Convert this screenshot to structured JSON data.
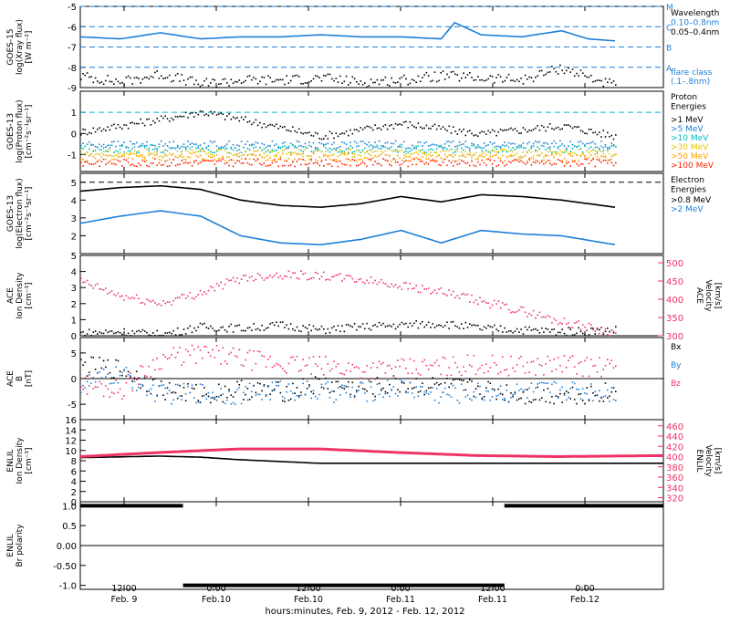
{
  "chart_data": {
    "type": "multi-panel time series",
    "x_axis": {
      "tick_labels": [
        {
          "time": "12:00",
          "date": "Feb. 9"
        },
        {
          "time": "0:00",
          "date": "Feb.10"
        },
        {
          "time": "12:00",
          "date": "Feb.10"
        },
        {
          "time": "0:00",
          "date": "Feb.11"
        },
        {
          "time": "12:00",
          "date": "Feb.11"
        },
        {
          "time": "0:00",
          "date": "Feb.12"
        }
      ],
      "label": "hours:minutes, Feb. 9, 2012 - Feb. 12, 2012",
      "range": [
        "2012-02-09 03:00",
        "2012-02-12 11:00"
      ]
    },
    "panels": [
      {
        "id": "goes15",
        "ylabel": [
          "GOES-15",
          "log(Xray flux)",
          "[W m⁻²]"
        ],
        "ylim": [
          -9,
          -5
        ],
        "yticks": [
          "-5",
          "-6",
          "-7",
          "-8",
          "-9"
        ],
        "flare_class_levels": [
          {
            "label": "M",
            "value": -5
          },
          {
            "label": "C",
            "value": -6
          },
          {
            "label": "B",
            "value": -7
          },
          {
            "label": "A",
            "value": -8
          }
        ],
        "legend": [
          {
            "text": "Wavelength",
            "color": "#000000"
          },
          {
            "text": "0.10–0.8nm",
            "color": "#1e7fd8"
          },
          {
            "text": "0.05–0.4nm",
            "color": "#000000"
          },
          {
            "text": "flare class",
            "color": "#1e7fd8"
          },
          {
            "text": "(.1–.8nm)",
            "color": "#1e7fd8"
          }
        ],
        "series": [
          {
            "name": "0.10–0.8nm",
            "color": "#1e7fd8",
            "hours": [
              0,
              6,
              12,
              18,
              24,
              30,
              36,
              42,
              48,
              54,
              56,
              60,
              66,
              72,
              76,
              80
            ],
            "values": [
              -6.5,
              -6.6,
              -6.3,
              -6.6,
              -6.5,
              -6.5,
              -6.4,
              -6.5,
              -6.5,
              -6.6,
              -5.8,
              -6.4,
              -6.5,
              -6.2,
              -6.6,
              -6.7
            ]
          },
          {
            "name": "0.05–0.4nm",
            "color": "#000000",
            "hours": [
              0,
              6,
              12,
              18,
              24,
              30,
              36,
              42,
              48,
              54,
              60,
              66,
              72,
              80
            ],
            "values": [
              -8.4,
              -8.7,
              -8.3,
              -8.8,
              -8.6,
              -8.6,
              -8.5,
              -8.7,
              -8.6,
              -8.4,
              -8.5,
              -8.6,
              -8.0,
              -8.9
            ]
          }
        ]
      },
      {
        "id": "goes13p",
        "ylabel": [
          "GOES-13",
          "log(Proton flux)",
          "[cm⁻²s⁻¹sr⁻¹]"
        ],
        "ylim": [
          -1.8,
          2.0
        ],
        "yticks": [
          "1",
          "0",
          "-1"
        ],
        "legend": [
          {
            "text": "Proton",
            "color": "#000000"
          },
          {
            "text": "Energies",
            "color": "#000000"
          },
          {
            "text": ">1 MeV",
            "color": "#000000"
          },
          {
            "text": ">5 MeV",
            "color": "#1e7fd8"
          },
          {
            "text": ">10 MeV",
            "color": "#00b8b8"
          },
          {
            "text": ">30 MeV",
            "color": "#e0c800"
          },
          {
            "text": ">50 MeV",
            "color": "#ff9c00"
          },
          {
            "text": ">100 MeV",
            "color": "#ff2200"
          }
        ],
        "series": [
          {
            "name": ">1 MeV",
            "color": "#000000",
            "hours": [
              0,
              12,
              18,
              24,
              36,
              48,
              60,
              72,
              80
            ],
            "values": [
              0.1,
              0.7,
              1.05,
              0.7,
              -0.1,
              0.5,
              0.0,
              0.4,
              -0.1
            ]
          },
          {
            "name": ">5 MeV",
            "color": "#1e7fd8",
            "hours": [
              0,
              80
            ],
            "values": [
              -0.5,
              -0.5
            ]
          },
          {
            "name": ">10 MeV",
            "color": "#00b8b8",
            "hours": [
              0,
              80
            ],
            "values": [
              -0.7,
              -0.7
            ]
          },
          {
            "name": ">30 MeV",
            "color": "#e0c800",
            "hours": [
              0,
              80
            ],
            "values": [
              -0.9,
              -0.9
            ]
          },
          {
            "name": ">50 MeV",
            "color": "#ff9c00",
            "hours": [
              0,
              80
            ],
            "values": [
              -1.1,
              -1.1
            ]
          },
          {
            "name": ">100 MeV",
            "color": "#ff2200",
            "hours": [
              0,
              80
            ],
            "values": [
              -1.35,
              -1.35
            ]
          }
        ]
      },
      {
        "id": "goes13e",
        "ylabel": [
          "GOES-13",
          "log(Electron flux)",
          "[cm⁻²s⁻¹sr⁻¹]"
        ],
        "ylim": [
          1.0,
          5.5
        ],
        "yticks": [
          "5",
          "4",
          "3",
          "2"
        ],
        "legend": [
          {
            "text": "Electron",
            "color": "#000000"
          },
          {
            "text": "Energies",
            "color": "#000000"
          },
          {
            "text": ">0.8 MeV",
            "color": "#000000"
          },
          {
            "text": ">2 MeV",
            "color": "#1e7fd8"
          }
        ],
        "series": [
          {
            "name": ">0.8 MeV",
            "color": "#000000",
            "hours": [
              0,
              6,
              12,
              18,
              24,
              30,
              36,
              42,
              48,
              54,
              60,
              66,
              72,
              80
            ],
            "values": [
              4.5,
              4.7,
              4.8,
              4.6,
              4.0,
              3.7,
              3.6,
              3.8,
              4.2,
              3.9,
              4.3,
              4.2,
              4.0,
              3.6
            ]
          },
          {
            "name": ">2 MeV",
            "color": "#1e7fd8",
            "hours": [
              0,
              6,
              12,
              18,
              24,
              30,
              36,
              42,
              48,
              54,
              60,
              66,
              72,
              80
            ],
            "values": [
              2.7,
              3.1,
              3.4,
              3.1,
              2.0,
              1.6,
              1.5,
              1.8,
              2.3,
              1.6,
              2.3,
              2.1,
              2.0,
              1.5
            ]
          }
        ]
      },
      {
        "id": "ace_density",
        "ylabel": [
          "ACE",
          "Ion Density",
          "[cm⁻³]"
        ],
        "ylim": [
          0,
          5
        ],
        "yticks": [
          "5",
          "4",
          "3",
          "2",
          "1",
          "0"
        ],
        "right_label": [
          "ACE",
          "Velocity",
          "[km/s]"
        ],
        "right_ylim": [
          300,
          520
        ],
        "right_yticks": [
          "500",
          "450",
          "400",
          "350",
          "300"
        ],
        "series": [
          {
            "name": "Ion Density",
            "color": "#000000",
            "hours": [
              0,
              6,
              12,
              18,
              24,
              30,
              36,
              42,
              48,
              54,
              60,
              66,
              72,
              80
            ],
            "values": [
              0.2,
              0.3,
              0.1,
              0.6,
              0.5,
              0.7,
              0.4,
              0.6,
              0.7,
              0.8,
              0.5,
              0.4,
              0.3,
              0.4
            ]
          },
          {
            "name": "Velocity",
            "color": "#ee3366",
            "hours": [
              0,
              6,
              12,
              18,
              24,
              30,
              36,
              42,
              48,
              54,
              60,
              66,
              72,
              80
            ],
            "values": [
              450,
              410,
              390,
              420,
              460,
              470,
              465,
              455,
              440,
              420,
              395,
              370,
              340,
              310
            ]
          }
        ]
      },
      {
        "id": "ace_b",
        "ylabel": [
          "ACE",
          "B",
          "[nT]"
        ],
        "ylim": [
          -8,
          8
        ],
        "yticks": [
          "5",
          "0",
          "-5"
        ],
        "legend": [
          {
            "text": "Bx",
            "color": "#000000"
          },
          {
            "text": "By",
            "color": "#1e7fd8"
          },
          {
            "text": "Bz",
            "color": "#ee3366"
          }
        ],
        "series": [
          {
            "name": "Bx",
            "color": "#000000",
            "hours": [
              0,
              6,
              12,
              18,
              24,
              30,
              36,
              42,
              48,
              54,
              60,
              66,
              72,
              80
            ],
            "values": [
              2.5,
              2.0,
              -2.0,
              -3.0,
              -2.0,
              -2.5,
              -1.0,
              -2.0,
              -1.0,
              -1.5,
              -2.0,
              -3.0,
              -3.0,
              -2.5
            ]
          },
          {
            "name": "By",
            "color": "#1e7fd8",
            "hours": [
              0,
              6,
              12,
              18,
              24,
              30,
              36,
              42,
              48,
              54,
              60,
              66,
              72,
              80
            ],
            "values": [
              -1.0,
              1.0,
              -3.0,
              -2.5,
              -3.0,
              -2.0,
              -2.5,
              -2.5,
              -1.5,
              -3.0,
              -2.5,
              -2.5,
              -2.0,
              -2.5
            ]
          },
          {
            "name": "Bz",
            "color": "#ee3366",
            "hours": [
              0,
              6,
              12,
              18,
              24,
              30,
              36,
              42,
              48,
              54,
              60,
              66,
              72,
              80
            ],
            "values": [
              -1.0,
              -2.0,
              4.0,
              5.0,
              4.0,
              3.0,
              2.5,
              2.0,
              2.0,
              2.5,
              3.0,
              2.5,
              3.0,
              2.0
            ]
          }
        ]
      },
      {
        "id": "enlil_density",
        "ylabel": [
          "ENLIL",
          "Ion Density",
          "[cm⁻³]"
        ],
        "ylim": [
          0,
          16
        ],
        "yticks": [
          "16",
          "14",
          "12",
          "10",
          "8",
          "6",
          "4",
          "2",
          "0"
        ],
        "right_label": [
          "ENLIL",
          "Velocity",
          "[km/s]"
        ],
        "right_ylim": [
          312,
          472
        ],
        "right_yticks": [
          "460",
          "440",
          "420",
          "400",
          "380",
          "360",
          "340",
          "320"
        ],
        "series": [
          {
            "name": "Ion Density",
            "color": "#000000",
            "hours": [
              0,
              12,
              18,
              24,
              36,
              48,
              60,
              72,
              88
            ],
            "values": [
              8.6,
              8.9,
              8.7,
              8.2,
              7.5,
              7.5,
              7.5,
              7.5,
              7.5
            ]
          },
          {
            "name": "Velocity",
            "color": "#ee3366",
            "hours": [
              0,
              12,
              24,
              36,
              48,
              60,
              72,
              88
            ],
            "values": [
              400,
              408,
              415,
              415,
              408,
              402,
              400,
              402
            ]
          }
        ]
      },
      {
        "id": "enlil_polarity",
        "ylabel": [
          "ENLIL",
          "Br polarity"
        ],
        "ylim": [
          -1.1,
          1.1
        ],
        "yticks": [
          "1.0",
          "0.5",
          "0.00",
          "-0.50",
          "-1.0"
        ],
        "series": [
          {
            "name": "polarity",
            "color": "#000000",
            "hours": [
              0,
              15.5,
              15.5,
              64,
              64,
              88
            ],
            "values": [
              1,
              1,
              -1,
              -1,
              1,
              1
            ]
          }
        ]
      }
    ]
  }
}
